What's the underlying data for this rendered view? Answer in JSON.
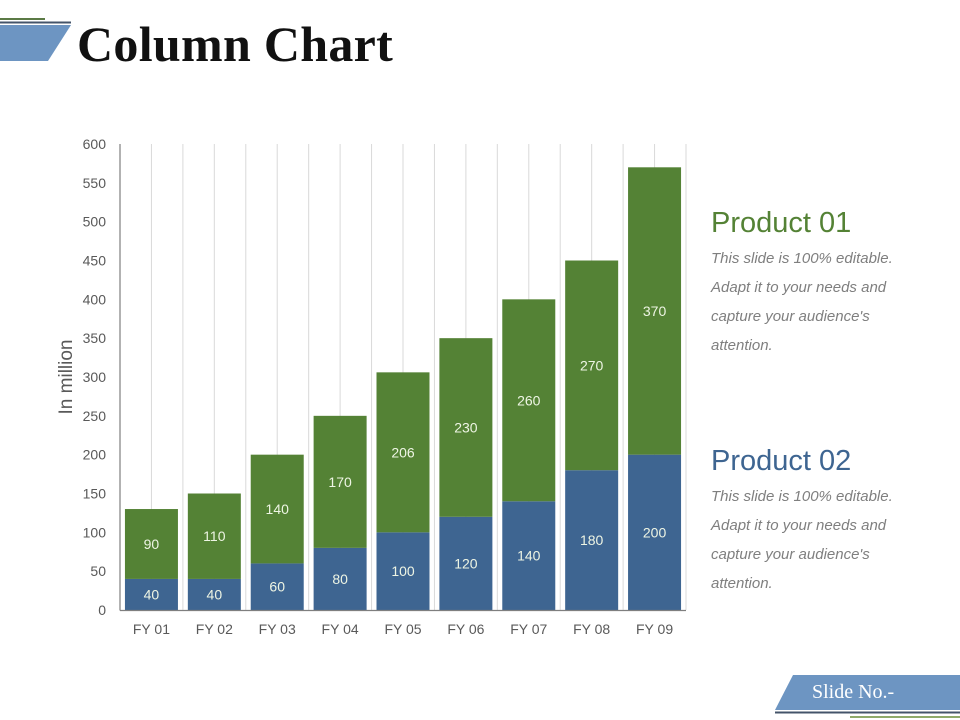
{
  "slide": {
    "title": "Column Chart",
    "footer_label": "Slide No.-",
    "colors": {
      "product01": "#548235",
      "product02": "#3e6591",
      "accent_light_blue": "#6d95c2",
      "accent_dark": "#44546a",
      "accent_green": "#8faa6a"
    }
  },
  "legend_panels": [
    {
      "heading": "Product 01",
      "color": "#548235",
      "lines": [
        "This slide is 100% editable.",
        "Adapt it to your needs and",
        "capture your audience's",
        "attention."
      ]
    },
    {
      "heading": "Product 02",
      "color": "#3e6591",
      "lines": [
        "This slide is 100% editable.",
        "Adapt it to your needs and",
        "capture your audience's",
        "attention."
      ]
    }
  ],
  "chart_data": {
    "type": "bar",
    "stacked": true,
    "title": "Column Chart",
    "xlabel": "",
    "ylabel": "In million",
    "ylim": [
      0,
      600
    ],
    "yticks": [
      0,
      50,
      100,
      150,
      200,
      250,
      300,
      350,
      400,
      450,
      500,
      550,
      600
    ],
    "grid": "vertical",
    "legend_position": "right (text panels)",
    "categories": [
      "FY 01",
      "FY 02",
      "FY 03",
      "FY 04",
      "FY 05",
      "FY 06",
      "FY 07",
      "FY 08",
      "FY 09"
    ],
    "series": [
      {
        "name": "Product 02",
        "color": "#3e6591",
        "values": [
          40,
          40,
          60,
          80,
          100,
          120,
          140,
          180,
          200
        ]
      },
      {
        "name": "Product 01",
        "color": "#548235",
        "values": [
          90,
          110,
          140,
          170,
          206,
          230,
          260,
          270,
          370
        ]
      }
    ]
  }
}
